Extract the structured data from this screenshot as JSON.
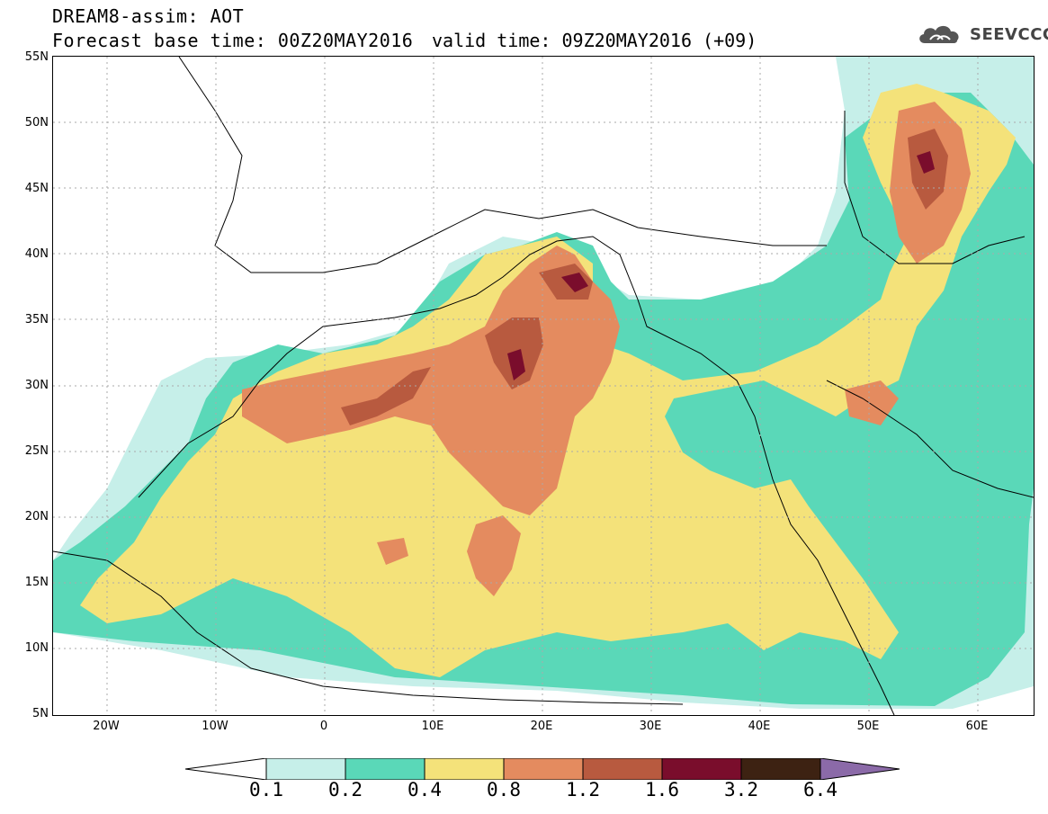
{
  "header": {
    "model_title": "DREAM8-assim: AOT",
    "forecast_base": "Forecast base time: 00Z20MAY2016",
    "valid_time": "valid time: 09Z20MAY2016 (+09)",
    "logo_text": "SEEVCCC",
    "logo_icon": "cloud-icon"
  },
  "map": {
    "lat_ticks": [
      "55N",
      "50N",
      "45N",
      "40N",
      "35N",
      "30N",
      "25N",
      "20N",
      "15N",
      "10N",
      "5N"
    ],
    "lon_ticks": [
      "20W",
      "10W",
      "0",
      "10E",
      "20E",
      "30E",
      "40E",
      "50E",
      "60E"
    ],
    "extent": {
      "lon": [
        -25,
        65
      ],
      "lat": [
        5,
        55
      ]
    }
  },
  "colorbar": {
    "labels": [
      "0.1",
      "0.2",
      "0.4",
      "0.8",
      "1.2",
      "1.6",
      "3.2",
      "6.4"
    ],
    "colors": [
      "#ffffff",
      "#c6efe9",
      "#5ad8b8",
      "#f4e27a",
      "#e48b5f",
      "#b85a3f",
      "#7a0d2c",
      "#3d2212",
      "#8b6aa8"
    ]
  }
}
